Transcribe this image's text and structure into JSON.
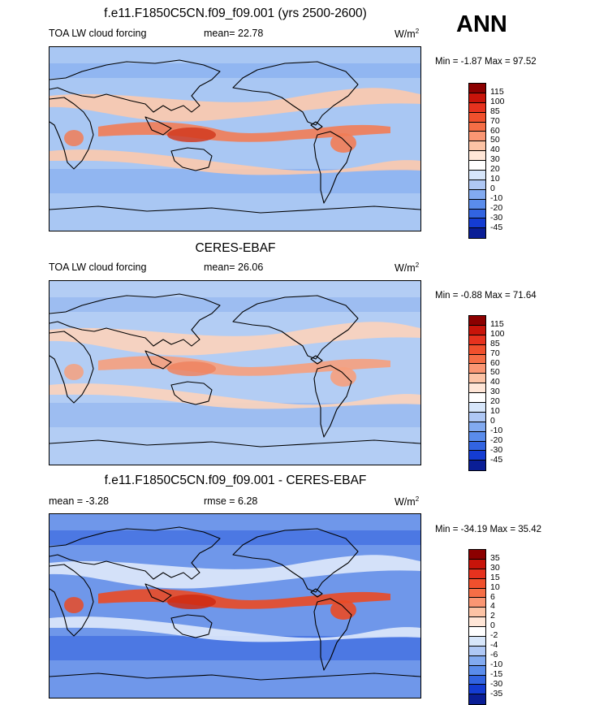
{
  "season": "ANN",
  "panels": [
    {
      "title": "f.e11.F1850C5CN.f09_f09.001 (yrs 2500-2600)",
      "left_label": "TOA LW cloud forcing",
      "mid_label": "mean=  22.78",
      "units_base": "W/m",
      "units_exp": "2",
      "minmax": "Min =  -1.87 Max =  97.52",
      "colorbar": {
        "labels": [
          "115",
          "100",
          "85",
          "70",
          "60",
          "50",
          "40",
          "30",
          "20",
          "10",
          "0",
          "-10",
          "-20",
          "-30",
          "-45"
        ],
        "colors": [
          "#8c0000",
          "#c8140a",
          "#e6321e",
          "#f0502d",
          "#f56e46",
          "#fa9673",
          "#fcc3a5",
          "#ffe6d7",
          "#ffffff",
          "#d7e6fa",
          "#afc8f5",
          "#82aaf0",
          "#5a8ceb",
          "#3264e1",
          "#143cd2",
          "#0a1e96"
        ]
      },
      "map_palette": {
        "ocean": "#a9c7f3",
        "band_warm": "#fcc9ad",
        "band_hot": "#f27c55",
        "band_peak": "#d23a1f",
        "cool": "#7ea7ee"
      }
    },
    {
      "title": "CERES-EBAF",
      "left_label": "TOA LW cloud forcing",
      "mid_label": "mean=  26.06",
      "units_base": "W/m",
      "units_exp": "2",
      "minmax": "Min =  -0.88 Max =  71.64",
      "colorbar": {
        "labels": [
          "115",
          "100",
          "85",
          "70",
          "60",
          "50",
          "40",
          "30",
          "20",
          "10",
          "0",
          "-10",
          "-20",
          "-30",
          "-45"
        ],
        "colors": [
          "#8c0000",
          "#c8140a",
          "#e6321e",
          "#f0502d",
          "#f56e46",
          "#fa9673",
          "#fcc3a5",
          "#ffe6d7",
          "#ffffff",
          "#d7e6fa",
          "#afc8f5",
          "#82aaf0",
          "#5a8ceb",
          "#3264e1",
          "#143cd2",
          "#0a1e96"
        ]
      },
      "map_palette": {
        "ocean": "#b3cdf4",
        "band_warm": "#fcd3bb",
        "band_hot": "#f6a07d",
        "band_peak": "#ef8460",
        "cool": "#8bb0ef"
      }
    },
    {
      "title": "f.e11.F1850C5CN.f09_f09.001 - CERES-EBAF",
      "left_label": "mean =  -3.28",
      "mid_label": "rmse =   6.28",
      "units_base": "W/m",
      "units_exp": "2",
      "minmax": "Min = -34.19 Max =  35.42",
      "colorbar": {
        "labels": [
          "35",
          "30",
          "15",
          "10",
          "6",
          "4",
          "2",
          "0",
          "-2",
          "-4",
          "-6",
          "-10",
          "-15",
          "-30",
          "-35"
        ],
        "colors": [
          "#8c0000",
          "#c8140a",
          "#e6321e",
          "#f0502d",
          "#f56e46",
          "#fa9673",
          "#fcc3a5",
          "#ffe6d7",
          "#ffffff",
          "#d7e6fa",
          "#afc8f5",
          "#82aaf0",
          "#5a8ceb",
          "#3264e1",
          "#143cd2",
          "#0a1e96"
        ]
      },
      "map_palette": {
        "ocean": "#6f97ea",
        "band_warm": "#dfe9fb",
        "band_hot": "#ea4a25",
        "band_peak": "#cf2a12",
        "cool": "#2f5fdd"
      }
    }
  ]
}
